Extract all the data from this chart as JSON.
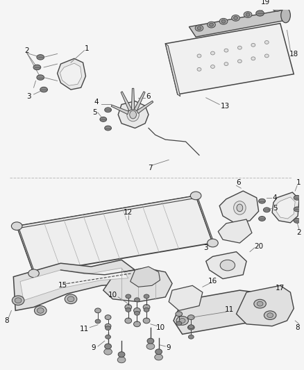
{
  "background_color": "#f5f5f5",
  "line_color": "#444444",
  "text_color": "#111111",
  "fig_width": 4.38,
  "fig_height": 5.33,
  "dpi": 100
}
